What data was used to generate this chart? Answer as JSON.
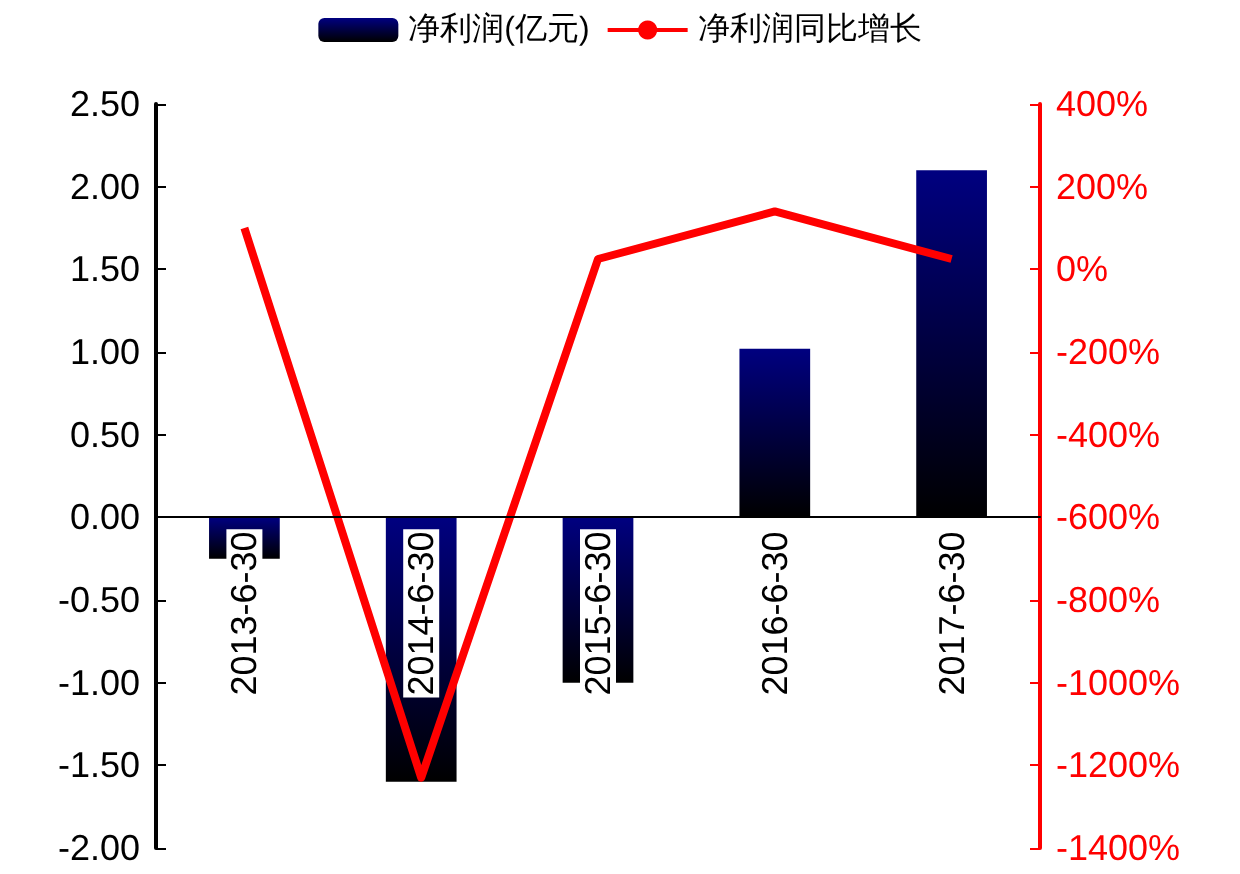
{
  "chart_data": {
    "type": "bar",
    "categories": [
      "2013-6-30",
      "2014-6-30",
      "2015-6-30",
      "2016-6-30",
      "2017-6-30"
    ],
    "series": [
      {
        "name": "净利润(亿元)",
        "color": "#000080",
        "values": [
          -0.25,
          -1.6,
          -1.0,
          1.02,
          2.1
        ]
      },
      {
        "name": "净利润同比增长",
        "type": "line",
        "axis": "y2",
        "color": "#ff0000",
        "values": [
          100,
          -1230,
          25,
          140,
          25
        ]
      }
    ],
    "ylim": [
      -2,
      2.5
    ],
    "yticks": [
      {
        "value": -2,
        "label": "-2.00"
      },
      {
        "value": -1.5,
        "label": "-1.50"
      },
      {
        "value": -1,
        "label": "-1.00"
      },
      {
        "value": -0.5,
        "label": "-0.50"
      },
      {
        "value": 0,
        "label": "0.00"
      },
      {
        "value": 0.5,
        "label": "0.50"
      },
      {
        "value": 1,
        "label": "1.00"
      },
      {
        "value": 1.5,
        "label": "1.50"
      },
      {
        "value": 2,
        "label": "2.00"
      },
      {
        "value": 2.5,
        "label": "2.50"
      }
    ],
    "y2lim": [
      -1400,
      400
    ],
    "y2ticks": [
      {
        "value": -1400,
        "label": "-1400%"
      },
      {
        "value": -1200,
        "label": "-1200%"
      },
      {
        "value": -1000,
        "label": "-1000%"
      },
      {
        "value": -800,
        "label": "-800%"
      },
      {
        "value": -600,
        "label": "-600%"
      },
      {
        "value": -400,
        "label": "-400%"
      },
      {
        "value": -200,
        "label": "-200%"
      },
      {
        "value": 0,
        "label": "0%"
      },
      {
        "value": 200,
        "label": "200%"
      },
      {
        "value": 400,
        "label": "400%"
      }
    ],
    "grid": false,
    "legend": "top",
    "marker": "none",
    "line_style": "solid"
  }
}
